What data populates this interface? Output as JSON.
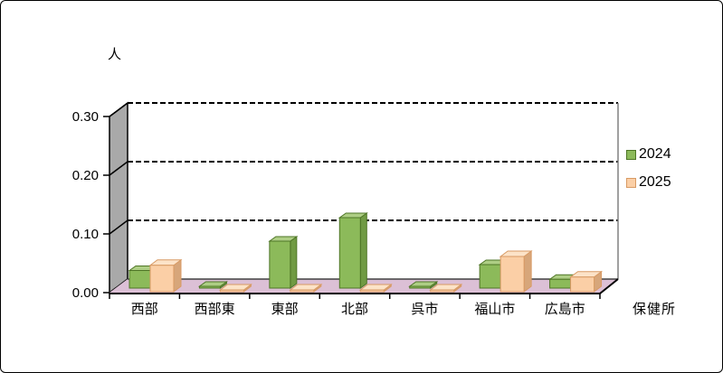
{
  "chart_data": {
    "type": "bar",
    "subtype": "3d-column",
    "title": "",
    "unit_label": "人",
    "axis_label_x": "保健所",
    "categories": [
      "西部",
      "西部東",
      "東部",
      "北部",
      "呉市",
      "福山市",
      "広島市"
    ],
    "series": [
      {
        "name": "2024",
        "values": [
          0.03,
          0.0,
          0.08,
          0.12,
          0.0,
          0.04,
          0.015
        ],
        "colors": {
          "front": "#8CBA5A",
          "top": "#AECE85",
          "side": "#709A43",
          "stroke": "#4E7526"
        }
      },
      {
        "name": "2025",
        "values": [
          0.045,
          0.0,
          0.0,
          0.0,
          0.0,
          0.06,
          0.025
        ],
        "colors": {
          "front": "#FBCFA6",
          "top": "#FCE3C8",
          "side": "#D7A67A",
          "stroke": "#D89A64"
        }
      }
    ],
    "ylim": [
      0,
      0.3
    ],
    "yticks": [
      "0.00",
      "0.10",
      "0.20",
      "0.30"
    ],
    "ytick_interval": 0.1,
    "grid": true,
    "gridline_style": "dashed",
    "legend_position": "right",
    "plot_colors": {
      "floor": "#DCC0D6",
      "left_wall": "#A9A9A9",
      "back_wall": "#FFFFFF",
      "axis_line": "#000000",
      "back_edge": "#404040",
      "right_edge": "#808080"
    }
  },
  "legend": {
    "items": [
      {
        "label": "2024"
      },
      {
        "label": "2025"
      }
    ]
  }
}
